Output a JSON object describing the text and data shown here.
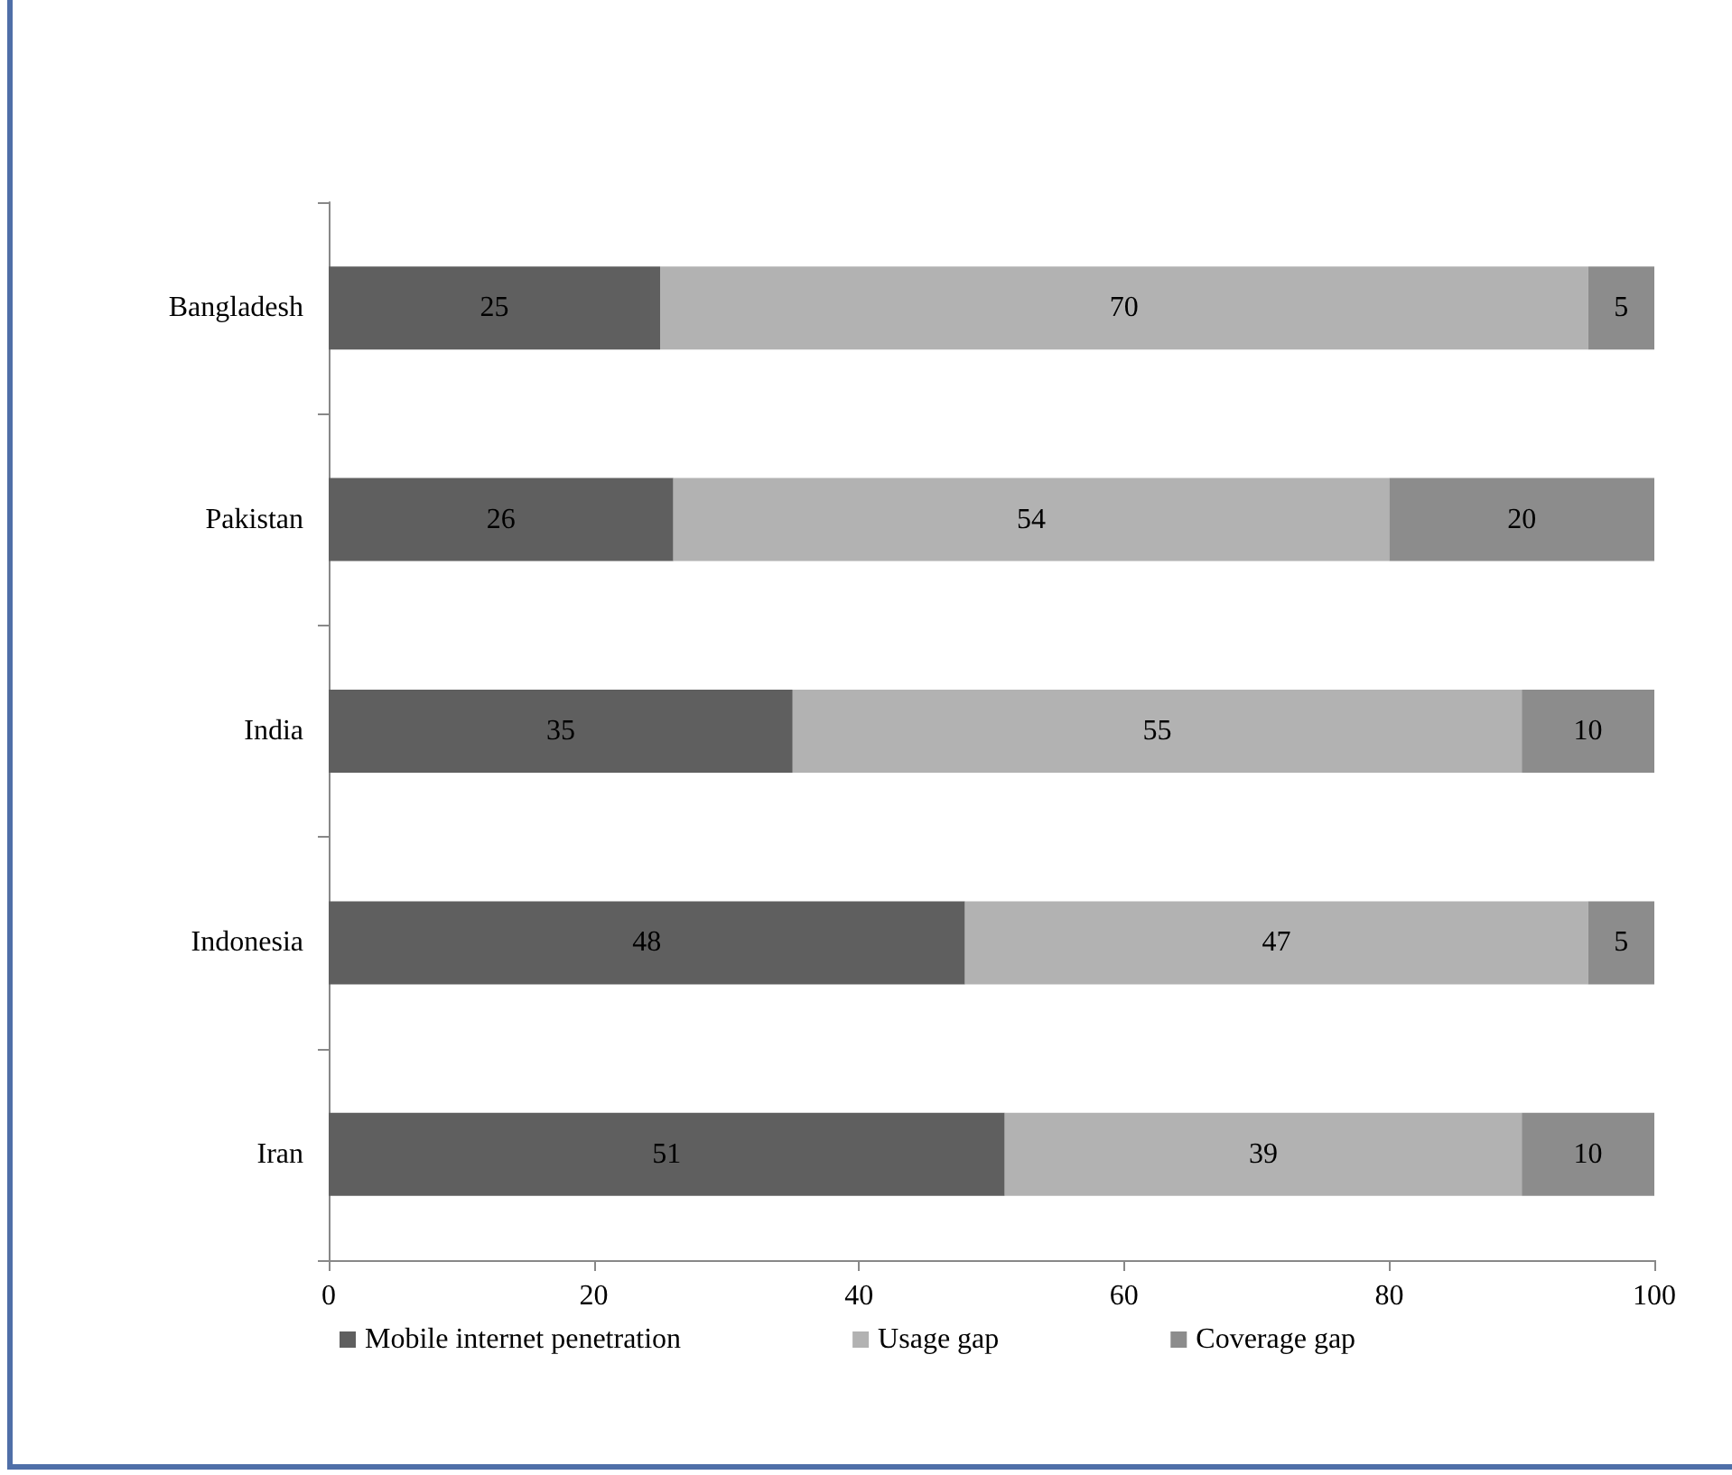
{
  "chart_data": {
    "type": "bar",
    "orientation": "horizontal",
    "stacked": true,
    "data_labels": true,
    "grid": false,
    "legend": "bottom",
    "categories": [
      "Bangladesh",
      "Pakistan",
      "India",
      "Indonesia",
      "Iran"
    ],
    "series": [
      {
        "name": "Mobile internet penetration",
        "color": "#5f5f5f",
        "values": [
          25,
          26,
          35,
          48,
          51
        ]
      },
      {
        "name": "Usage gap",
        "color": "#b2b2b2",
        "values": [
          70,
          54,
          55,
          47,
          39
        ]
      },
      {
        "name": "Coverage gap",
        "color": "#8c8c8c",
        "values": [
          5,
          20,
          10,
          5,
          10
        ]
      }
    ],
    "xlim": [
      0,
      100
    ],
    "xticks": [
      0,
      20,
      40,
      60,
      80,
      100
    ]
  }
}
